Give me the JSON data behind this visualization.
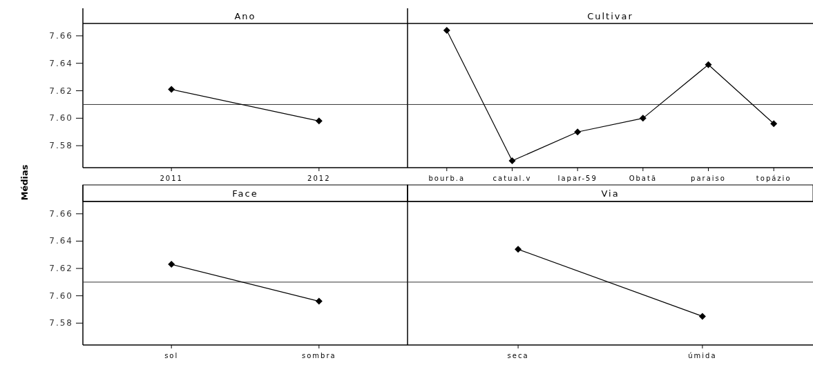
{
  "chart_data": [
    {
      "type": "line",
      "title": "Ano",
      "ylabel": "Médias",
      "categories": [
        "2011",
        "2012"
      ],
      "values": [
        7.621,
        7.598
      ],
      "color": "#000000",
      "marker": "diamond",
      "ylim": [
        7.564,
        7.669
      ],
      "yticks": [
        7.58,
        {
          "value": 7.6,
          "label": "7.60"
        },
        7.62,
        7.64,
        7.66
      ],
      "ref_lines": [
        {
          "axis": "y",
          "value": 7.61
        }
      ],
      "grid": false
    },
    {
      "type": "line",
      "title": "Cultivar",
      "categories": [
        "bourb.a",
        "catual.v",
        "Iapar-59",
        "Obatã",
        "paraiso",
        "topázio"
      ],
      "values": [
        7.664,
        7.569,
        7.59,
        7.6,
        7.639,
        7.596
      ],
      "color": "#000000",
      "marker": "diamond",
      "ylim": [
        7.564,
        7.669
      ],
      "yticks": [
        7.58,
        7.6,
        7.62,
        7.64,
        7.66
      ],
      "tick_labels": "x",
      "ref_lines": [
        {
          "axis": "y",
          "value": 7.61
        }
      ],
      "grid": false
    },
    {
      "type": "line",
      "title": "Face",
      "categories": [
        "sol",
        "sombra"
      ],
      "values": [
        7.623,
        7.596
      ],
      "color": "#000000",
      "marker": "diamond",
      "ylim": [
        7.564,
        7.669
      ],
      "yticks": [
        7.58,
        {
          "value": 7.6,
          "label": "7.60"
        },
        7.62,
        7.64,
        7.66
      ],
      "ref_lines": [
        {
          "axis": "y",
          "value": 7.61
        }
      ],
      "grid": false
    },
    {
      "type": "line",
      "title": "Via",
      "categories": [
        "seca",
        "úmida"
      ],
      "values": [
        7.634,
        7.585
      ],
      "color": "#000000",
      "marker": "diamond",
      "ylim": [
        7.564,
        7.669
      ],
      "yticks": [
        7.58,
        7.6,
        7.62,
        7.64,
        7.66
      ],
      "tick_labels": "x",
      "ref_lines": [
        {
          "axis": "y",
          "value": 7.61
        }
      ],
      "grid": false
    }
  ]
}
